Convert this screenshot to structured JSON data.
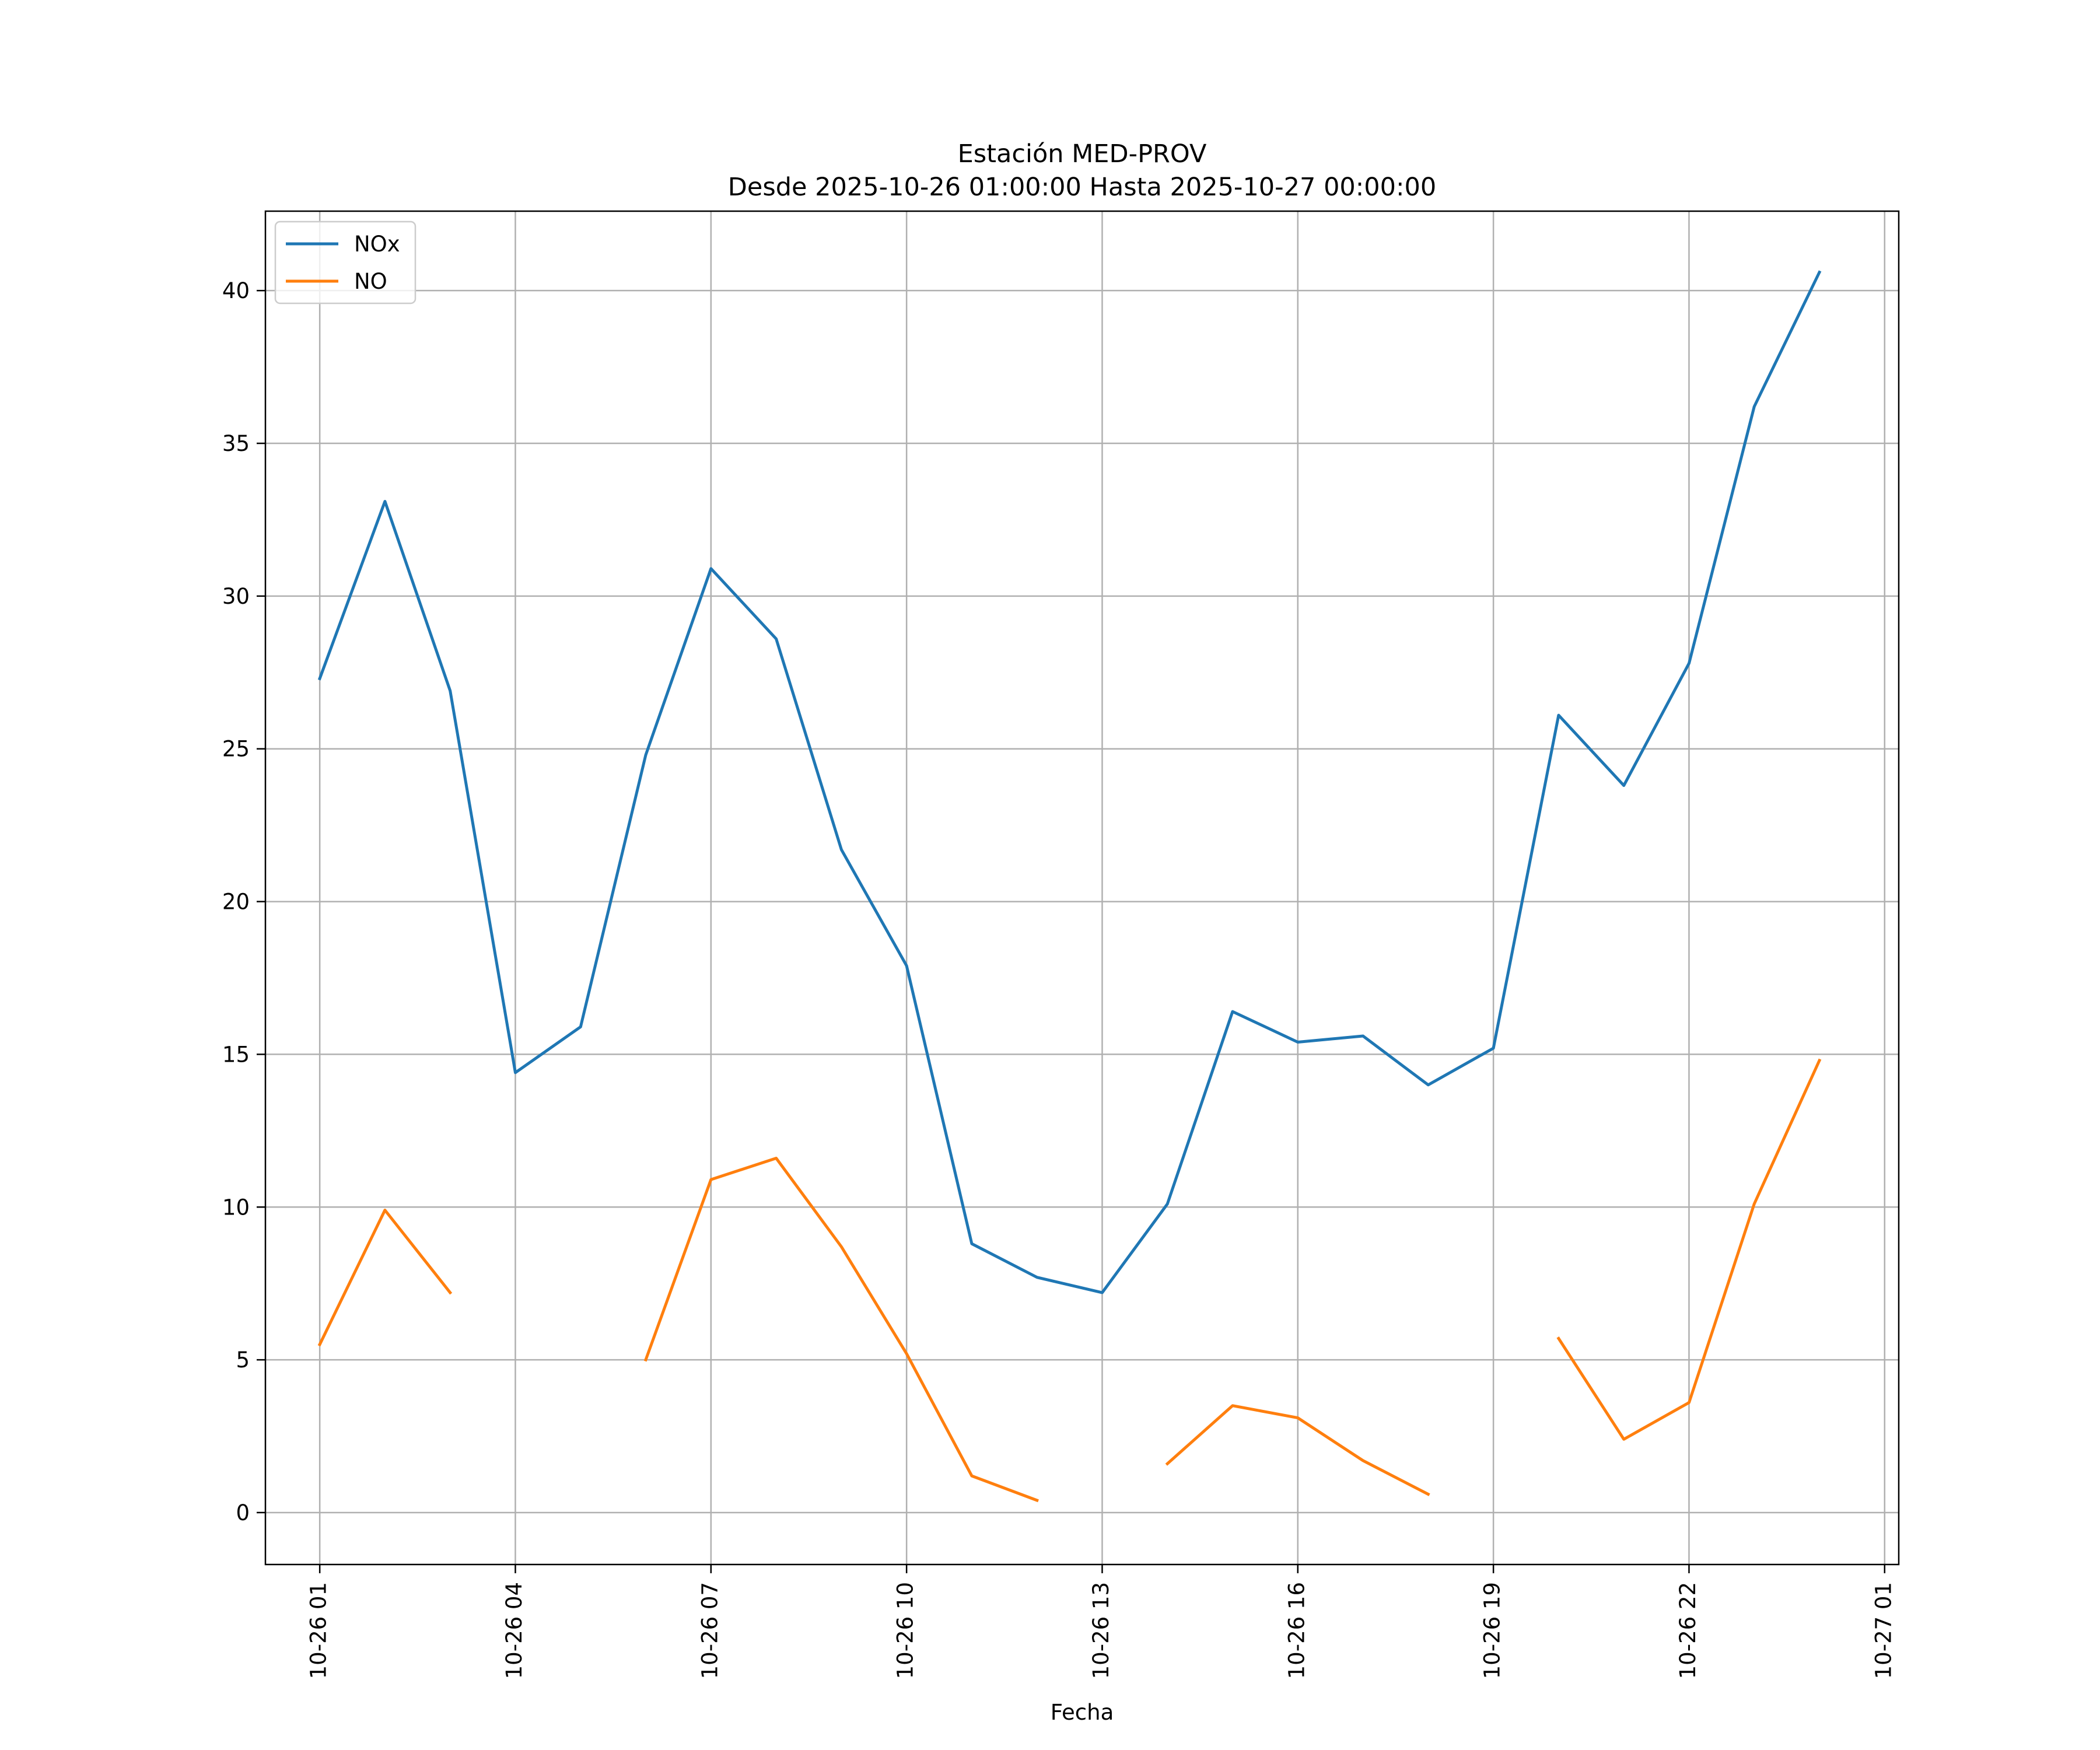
{
  "chart_data": {
    "type": "line",
    "title": "Estación MED-PROV",
    "subtitle": "Desde 2025-10-26 01:00:00 Hasta 2025-10-27 00:00:00",
    "xlabel": "Fecha",
    "ylabel": "",
    "ylim": [
      -1.7,
      42.6
    ],
    "xlim": [
      "2025-10-26 00:10",
      "2025-10-27 01:13"
    ],
    "grid": true,
    "legend_position": "top-left",
    "x": [
      "2025-10-26 01:00",
      "2025-10-26 02:00",
      "2025-10-26 03:00",
      "2025-10-26 04:00",
      "2025-10-26 05:00",
      "2025-10-26 06:00",
      "2025-10-26 07:00",
      "2025-10-26 08:00",
      "2025-10-26 09:00",
      "2025-10-26 10:00",
      "2025-10-26 11:00",
      "2025-10-26 12:00",
      "2025-10-26 13:00",
      "2025-10-26 14:00",
      "2025-10-26 15:00",
      "2025-10-26 16:00",
      "2025-10-26 17:00",
      "2025-10-26 18:00",
      "2025-10-26 19:00",
      "2025-10-26 20:00",
      "2025-10-26 21:00",
      "2025-10-26 22:00",
      "2025-10-26 23:00",
      "2025-10-27 00:00"
    ],
    "x_ticks": [
      "2025-10-26 01:00",
      "2025-10-26 04:00",
      "2025-10-26 07:00",
      "2025-10-26 10:00",
      "2025-10-26 13:00",
      "2025-10-26 16:00",
      "2025-10-26 19:00",
      "2025-10-26 22:00",
      "2025-10-27 01:00"
    ],
    "x_tick_labels": [
      "10-26 01",
      "10-26 04",
      "10-26 07",
      "10-26 10",
      "10-26 13",
      "10-26 16",
      "10-26 19",
      "10-26 22",
      "10-27 01"
    ],
    "y_ticks": [
      0,
      5,
      10,
      15,
      20,
      25,
      30,
      35,
      40
    ],
    "y_tick_labels": [
      "0",
      "5",
      "10",
      "15",
      "20",
      "25",
      "30",
      "35",
      "40"
    ],
    "series": [
      {
        "name": "NOx",
        "color": "#1f77b4",
        "values": [
          27.3,
          33.1,
          26.9,
          14.4,
          15.9,
          24.8,
          30.9,
          28.6,
          21.7,
          17.9,
          8.8,
          7.7,
          7.2,
          10.1,
          16.4,
          15.4,
          15.6,
          14.0,
          15.2,
          26.1,
          23.8,
          27.8,
          36.2,
          40.6
        ]
      },
      {
        "name": "NO",
        "color": "#ff7f0e",
        "values": [
          5.5,
          9.9,
          7.2,
          null,
          null,
          5.0,
          10.9,
          11.6,
          8.7,
          5.2,
          1.2,
          0.4,
          null,
          1.6,
          3.5,
          3.1,
          1.7,
          0.6,
          null,
          5.7,
          2.4,
          3.6,
          10.1,
          14.8
        ]
      }
    ]
  }
}
